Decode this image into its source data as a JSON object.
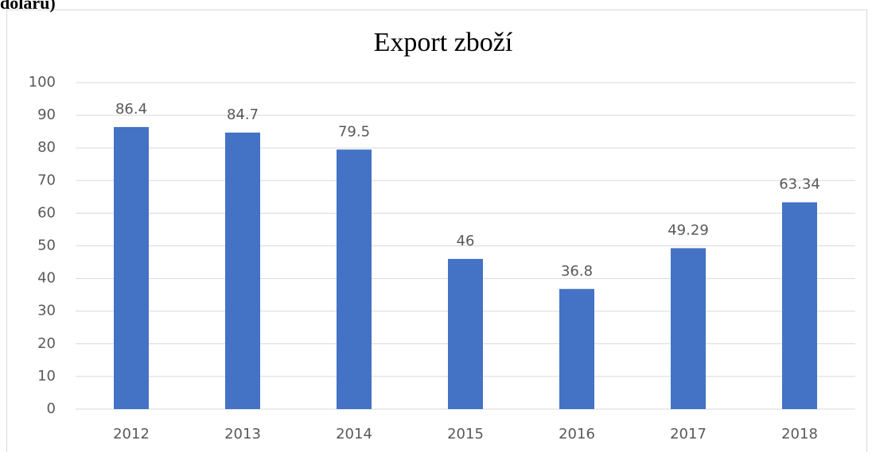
{
  "caption": "dolaru)",
  "chart_data": {
    "type": "bar",
    "title": "Export zboží",
    "categories": [
      "2012",
      "2013",
      "2014",
      "2015",
      "2016",
      "2017",
      "2018"
    ],
    "values": [
      86.4,
      84.7,
      79.5,
      46,
      36.8,
      49.29,
      63.34
    ],
    "color": "#4472c4",
    "ylim": [
      0,
      100
    ],
    "yticks": [
      0,
      10,
      20,
      30,
      40,
      50,
      60,
      70,
      80,
      90,
      100
    ],
    "grid": true
  }
}
